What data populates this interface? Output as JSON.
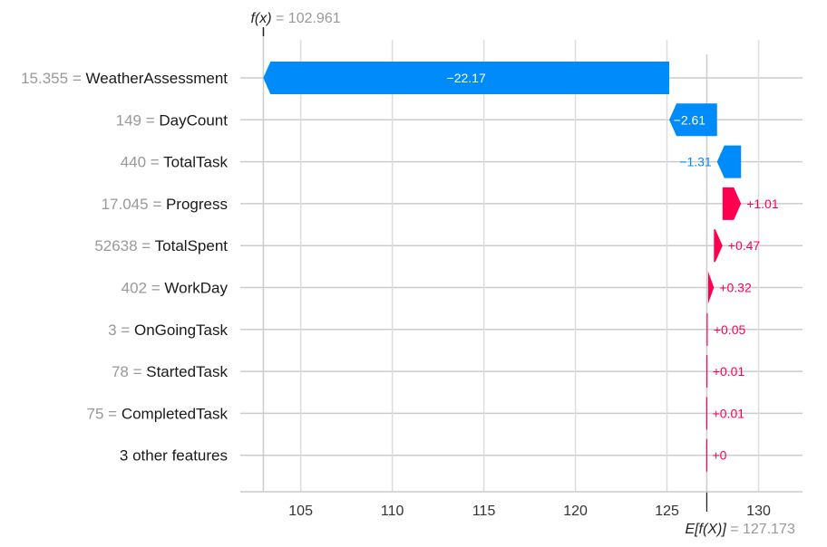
{
  "chart_data": {
    "type": "waterfall",
    "fx": {
      "label": "f(x)",
      "value_text": "= 102.961",
      "value": 102.961
    },
    "base": {
      "label": "E[f(X)]",
      "value_text": "= 127.173",
      "value": 127.173
    },
    "x_ticks": [
      105,
      110,
      115,
      120,
      125,
      130
    ],
    "xlim": [
      101.7,
      132.4
    ],
    "features": [
      {
        "value_text": "15.355",
        "name": "WeatherAssessment",
        "contribution": -22.17,
        "label": "−22.17"
      },
      {
        "value_text": "149",
        "name": "DayCount",
        "contribution": -2.61,
        "label": "−2.61"
      },
      {
        "value_text": "440",
        "name": "TotalTask",
        "contribution": -1.31,
        "label": "−1.31"
      },
      {
        "value_text": "17.045",
        "name": "Progress",
        "contribution": 1.01,
        "label": "+1.01"
      },
      {
        "value_text": "52638",
        "name": "TotalSpent",
        "contribution": 0.47,
        "label": "+0.47"
      },
      {
        "value_text": "402",
        "name": "WorkDay",
        "contribution": 0.32,
        "label": "+0.32"
      },
      {
        "value_text": "3",
        "name": "OnGoingTask",
        "contribution": 0.05,
        "label": "+0.05"
      },
      {
        "value_text": "78",
        "name": "StartedTask",
        "contribution": 0.01,
        "label": "+0.01"
      },
      {
        "value_text": "75",
        "name": "CompletedTask",
        "contribution": 0.01,
        "label": "+0.01"
      },
      {
        "value_text": "",
        "name": "3 other features",
        "contribution": 0.0,
        "label": "+0"
      }
    ],
    "colors": {
      "positive": "#ff0051",
      "negative": "#008bfb",
      "grid": "#cccccc",
      "axis": "#cccccc"
    }
  }
}
